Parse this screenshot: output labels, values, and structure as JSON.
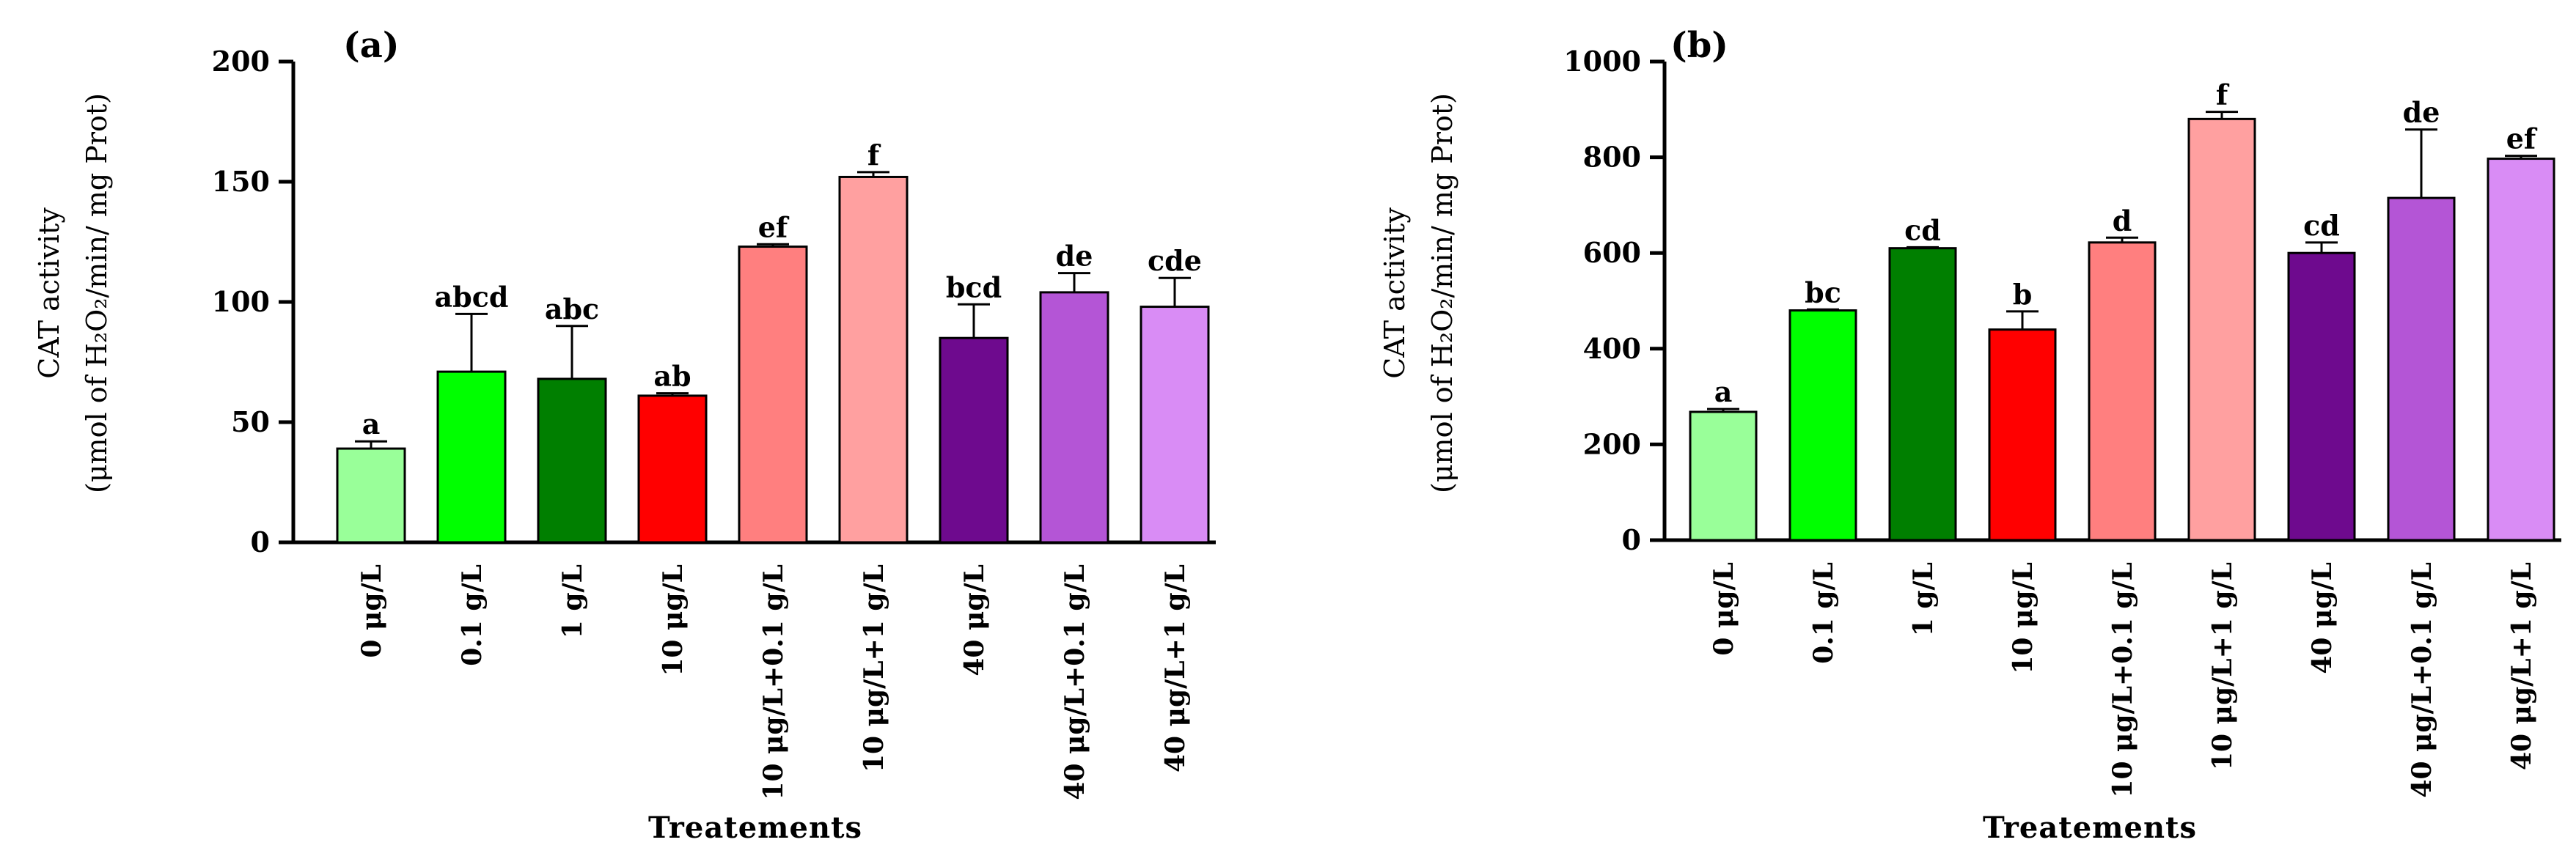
{
  "chart_data": [
    {
      "type": "bar",
      "panel_label": "(a)",
      "xlabel": "Treatements",
      "ylabel_line1": "CAT activity",
      "ylabel_line2": "(μmol of H₂O₂/min/ mg Prot)",
      "ylim": [
        0,
        200
      ],
      "yticks": [
        0,
        50,
        100,
        150,
        200
      ],
      "categories": [
        "0 μg/L",
        "0.1 g/L",
        "1 g/L",
        "10 μg/L",
        "10 μg/L+0.1 g/L",
        "10 μg/L+1 g/L",
        "40 μg/L",
        "40 μg/L+0.1 g/L",
        "40 μg/L+1 g/L"
      ],
      "values": [
        39,
        71,
        68,
        61,
        123,
        152,
        85,
        104,
        98
      ],
      "errors": [
        3,
        24,
        22,
        1,
        1,
        2,
        14,
        8,
        12
      ],
      "letters": [
        "a",
        "abcd",
        "abc",
        "ab",
        "ef",
        "f",
        "bcd",
        "de",
        "cde"
      ],
      "colors": [
        "#99ff99",
        "#00ff00",
        "#007f00",
        "#ff0000",
        "#ff7f7f",
        "#ffa0a0",
        "#6e0a8e",
        "#b455d6",
        "#d98cf5"
      ]
    },
    {
      "type": "bar",
      "panel_label": "(b)",
      "xlabel": "Treatements",
      "ylabel_line1": "CAT activity",
      "ylabel_line2": "(μmol of H₂O₂/min/ mg Prot)",
      "ylim": [
        0,
        1000
      ],
      "yticks": [
        0,
        200,
        400,
        600,
        800,
        1000
      ],
      "categories": [
        "0 μg/L",
        "0.1 g/L",
        "1 g/L",
        "10 μg/L",
        "10 μg/L+0.1 g/L",
        "10 μg/L+1 g/L",
        "40 μg/L",
        "40 μg/L+0.1 g/L",
        "40 μg/L+1 g/L"
      ],
      "values": [
        268,
        480,
        610,
        440,
        622,
        880,
        600,
        715,
        797
      ],
      "errors": [
        6,
        2,
        2,
        38,
        10,
        15,
        22,
        143,
        6
      ],
      "letters": [
        "a",
        "bc",
        "cd",
        "b",
        "d",
        "f",
        "cd",
        "de",
        "ef"
      ],
      "colors": [
        "#99ff99",
        "#00ff00",
        "#007f00",
        "#ff0000",
        "#ff7f7f",
        "#ffa0a0",
        "#6e0a8e",
        "#b455d6",
        "#d98cf5"
      ]
    }
  ]
}
